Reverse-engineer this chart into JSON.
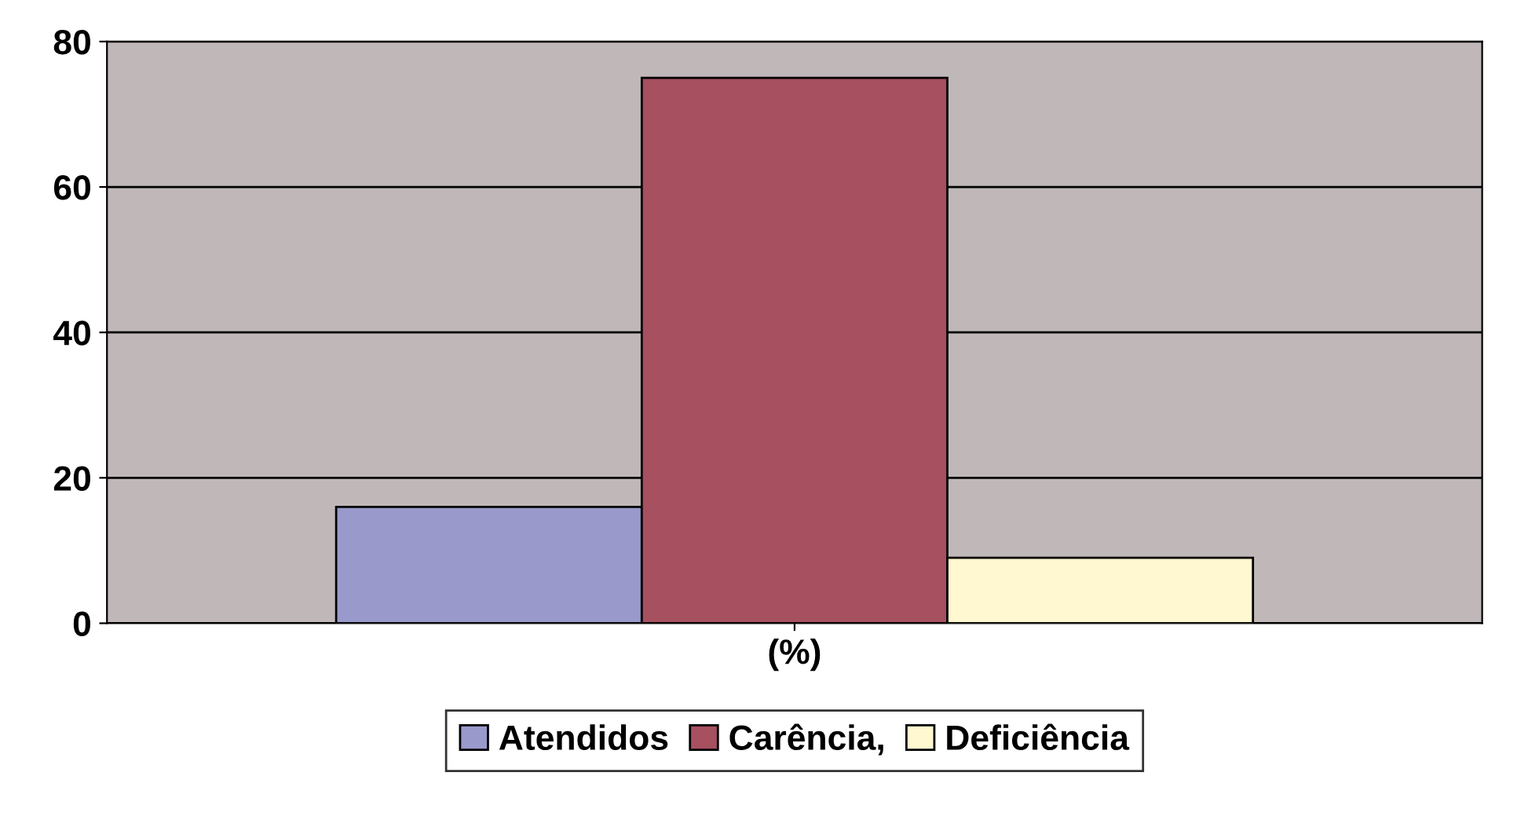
{
  "chart_data": {
    "type": "bar",
    "categories": [
      "(%)"
    ],
    "series": [
      {
        "name": "Atendidos",
        "color": "#9999cc",
        "values": [
          16
        ]
      },
      {
        "name": "Carência,",
        "color": "#a65060",
        "values": [
          75
        ]
      },
      {
        "name": "Deficiência",
        "color": "#fff8d0",
        "values": [
          9
        ]
      }
    ],
    "ylim": [
      0,
      80
    ],
    "yticks": [
      0,
      20,
      40,
      60,
      80
    ],
    "grid": "y",
    "legend": "bottom"
  }
}
